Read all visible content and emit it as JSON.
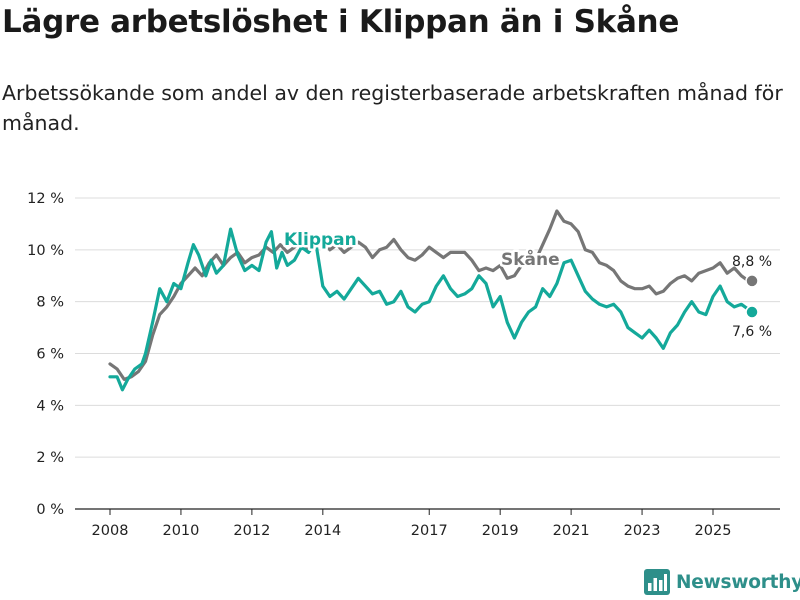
{
  "title": "Lägre arbetslöshet i Klippan än i Skåne",
  "subtitle": "Arbetssökande som andel av den registerbaserade arbetskraften månad för månad.",
  "branding": {
    "name": "Newsworthy"
  },
  "colors": {
    "klippan": "#14a99a",
    "skane": "#767676",
    "axis": "#222222",
    "grid": "#dcdcdc",
    "brand": "#2e8f8a"
  },
  "chart_data": {
    "type": "line",
    "ylim": [
      0,
      12
    ],
    "xlim": [
      2007.5,
      2026.8
    ],
    "y_ticks": [
      0,
      2,
      4,
      6,
      8,
      10,
      12
    ],
    "y_tick_labels": [
      "0 %",
      "2 %",
      "4 %",
      "6 %",
      "8 %",
      "10 %",
      "12 %"
    ],
    "x_ticks": [
      2008,
      2010,
      2012,
      2014,
      2017,
      2019,
      2021,
      2023,
      2025
    ],
    "x_tick_labels": [
      "2008",
      "2010",
      "2012",
      "2014",
      "2017",
      "2019",
      "2021",
      "2023",
      "2025"
    ],
    "grid": true,
    "series": [
      {
        "name": "Skåne",
        "label": "Skåne",
        "color_key": "skane",
        "end_label": "8,8 %",
        "points": [
          [
            2008.0,
            5.6
          ],
          [
            2008.2,
            5.4
          ],
          [
            2008.4,
            5.0
          ],
          [
            2008.6,
            5.1
          ],
          [
            2008.8,
            5.3
          ],
          [
            2009.0,
            5.7
          ],
          [
            2009.2,
            6.7
          ],
          [
            2009.4,
            7.5
          ],
          [
            2009.6,
            7.8
          ],
          [
            2009.8,
            8.2
          ],
          [
            2010.0,
            8.7
          ],
          [
            2010.2,
            9.0
          ],
          [
            2010.4,
            9.3
          ],
          [
            2010.6,
            9.0
          ],
          [
            2010.8,
            9.5
          ],
          [
            2011.0,
            9.8
          ],
          [
            2011.2,
            9.4
          ],
          [
            2011.4,
            9.7
          ],
          [
            2011.6,
            9.9
          ],
          [
            2011.8,
            9.5
          ],
          [
            2012.0,
            9.7
          ],
          [
            2012.2,
            9.8
          ],
          [
            2012.4,
            10.1
          ],
          [
            2012.6,
            9.9
          ],
          [
            2012.8,
            10.2
          ],
          [
            2013.0,
            9.9
          ],
          [
            2013.2,
            10.1
          ],
          [
            2013.4,
            10.3
          ],
          [
            2013.6,
            10.0
          ],
          [
            2013.8,
            10.3
          ],
          [
            2014.0,
            10.4
          ],
          [
            2014.2,
            10.0
          ],
          [
            2014.4,
            10.2
          ],
          [
            2014.6,
            9.9
          ],
          [
            2014.8,
            10.1
          ],
          [
            2015.0,
            10.3
          ],
          [
            2015.2,
            10.1
          ],
          [
            2015.4,
            9.7
          ],
          [
            2015.6,
            10.0
          ],
          [
            2015.8,
            10.1
          ],
          [
            2016.0,
            10.4
          ],
          [
            2016.2,
            10.0
          ],
          [
            2016.4,
            9.7
          ],
          [
            2016.6,
            9.6
          ],
          [
            2016.8,
            9.8
          ],
          [
            2017.0,
            10.1
          ],
          [
            2017.2,
            9.9
          ],
          [
            2017.4,
            9.7
          ],
          [
            2017.6,
            9.9
          ],
          [
            2017.8,
            9.9
          ],
          [
            2018.0,
            9.9
          ],
          [
            2018.2,
            9.6
          ],
          [
            2018.4,
            9.2
          ],
          [
            2018.6,
            9.3
          ],
          [
            2018.8,
            9.2
          ],
          [
            2019.0,
            9.4
          ],
          [
            2019.2,
            8.9
          ],
          [
            2019.4,
            9.0
          ],
          [
            2019.6,
            9.4
          ],
          [
            2019.8,
            9.6
          ],
          [
            2020.0,
            9.6
          ],
          [
            2020.2,
            10.2
          ],
          [
            2020.4,
            10.8
          ],
          [
            2020.6,
            11.5
          ],
          [
            2020.8,
            11.1
          ],
          [
            2021.0,
            11.0
          ],
          [
            2021.2,
            10.7
          ],
          [
            2021.4,
            10.0
          ],
          [
            2021.6,
            9.9
          ],
          [
            2021.8,
            9.5
          ],
          [
            2022.0,
            9.4
          ],
          [
            2022.2,
            9.2
          ],
          [
            2022.4,
            8.8
          ],
          [
            2022.6,
            8.6
          ],
          [
            2022.8,
            8.5
          ],
          [
            2023.0,
            8.5
          ],
          [
            2023.2,
            8.6
          ],
          [
            2023.4,
            8.3
          ],
          [
            2023.6,
            8.4
          ],
          [
            2023.8,
            8.7
          ],
          [
            2024.0,
            8.9
          ],
          [
            2024.2,
            9.0
          ],
          [
            2024.4,
            8.8
          ],
          [
            2024.6,
            9.1
          ],
          [
            2024.8,
            9.2
          ],
          [
            2025.0,
            9.3
          ],
          [
            2025.2,
            9.5
          ],
          [
            2025.4,
            9.1
          ],
          [
            2025.6,
            9.3
          ],
          [
            2025.8,
            9.0
          ],
          [
            2026.0,
            8.8
          ],
          [
            2026.1,
            8.8
          ]
        ]
      },
      {
        "name": "Klippan",
        "label": "Klippan",
        "color_key": "klippan",
        "end_label": "7,6 %",
        "points": [
          [
            2008.0,
            5.1
          ],
          [
            2008.2,
            5.1
          ],
          [
            2008.35,
            4.6
          ],
          [
            2008.5,
            5.0
          ],
          [
            2008.7,
            5.4
          ],
          [
            2008.9,
            5.6
          ],
          [
            2009.0,
            6.0
          ],
          [
            2009.2,
            7.2
          ],
          [
            2009.4,
            8.5
          ],
          [
            2009.6,
            8.0
          ],
          [
            2009.8,
            8.7
          ],
          [
            2010.0,
            8.5
          ],
          [
            2010.2,
            9.5
          ],
          [
            2010.35,
            10.2
          ],
          [
            2010.5,
            9.8
          ],
          [
            2010.7,
            9.0
          ],
          [
            2010.85,
            9.6
          ],
          [
            2011.0,
            9.1
          ],
          [
            2011.2,
            9.4
          ],
          [
            2011.4,
            10.8
          ],
          [
            2011.6,
            9.8
          ],
          [
            2011.8,
            9.2
          ],
          [
            2012.0,
            9.4
          ],
          [
            2012.2,
            9.2
          ],
          [
            2012.4,
            10.3
          ],
          [
            2012.55,
            10.7
          ],
          [
            2012.7,
            9.3
          ],
          [
            2012.85,
            9.9
          ],
          [
            2013.0,
            9.4
          ],
          [
            2013.2,
            9.6
          ],
          [
            2013.4,
            10.1
          ],
          [
            2013.6,
            9.9
          ],
          [
            2013.8,
            10.3
          ],
          [
            2014.0,
            8.6
          ],
          [
            2014.2,
            8.2
          ],
          [
            2014.4,
            8.4
          ],
          [
            2014.6,
            8.1
          ],
          [
            2014.8,
            8.5
          ],
          [
            2015.0,
            8.9
          ],
          [
            2015.2,
            8.6
          ],
          [
            2015.4,
            8.3
          ],
          [
            2015.6,
            8.4
          ],
          [
            2015.8,
            7.9
          ],
          [
            2016.0,
            8.0
          ],
          [
            2016.2,
            8.4
          ],
          [
            2016.4,
            7.8
          ],
          [
            2016.6,
            7.6
          ],
          [
            2016.8,
            7.9
          ],
          [
            2017.0,
            8.0
          ],
          [
            2017.2,
            8.6
          ],
          [
            2017.4,
            9.0
          ],
          [
            2017.6,
            8.5
          ],
          [
            2017.8,
            8.2
          ],
          [
            2018.0,
            8.3
          ],
          [
            2018.2,
            8.5
          ],
          [
            2018.4,
            9.0
          ],
          [
            2018.6,
            8.7
          ],
          [
            2018.8,
            7.8
          ],
          [
            2019.0,
            8.2
          ],
          [
            2019.2,
            7.2
          ],
          [
            2019.4,
            6.6
          ],
          [
            2019.6,
            7.2
          ],
          [
            2019.8,
            7.6
          ],
          [
            2020.0,
            7.8
          ],
          [
            2020.2,
            8.5
          ],
          [
            2020.4,
            8.2
          ],
          [
            2020.6,
            8.7
          ],
          [
            2020.8,
            9.5
          ],
          [
            2021.0,
            9.6
          ],
          [
            2021.2,
            9.0
          ],
          [
            2021.4,
            8.4
          ],
          [
            2021.6,
            8.1
          ],
          [
            2021.8,
            7.9
          ],
          [
            2022.0,
            7.8
          ],
          [
            2022.2,
            7.9
          ],
          [
            2022.4,
            7.6
          ],
          [
            2022.6,
            7.0
          ],
          [
            2022.8,
            6.8
          ],
          [
            2023.0,
            6.6
          ],
          [
            2023.2,
            6.9
          ],
          [
            2023.4,
            6.6
          ],
          [
            2023.6,
            6.2
          ],
          [
            2023.8,
            6.8
          ],
          [
            2024.0,
            7.1
          ],
          [
            2024.2,
            7.6
          ],
          [
            2024.4,
            8.0
          ],
          [
            2024.6,
            7.6
          ],
          [
            2024.8,
            7.5
          ],
          [
            2025.0,
            8.2
          ],
          [
            2025.2,
            8.6
          ],
          [
            2025.4,
            8.0
          ],
          [
            2025.6,
            7.8
          ],
          [
            2025.8,
            7.9
          ],
          [
            2026.0,
            7.7
          ],
          [
            2026.1,
            7.6
          ]
        ]
      }
    ]
  }
}
